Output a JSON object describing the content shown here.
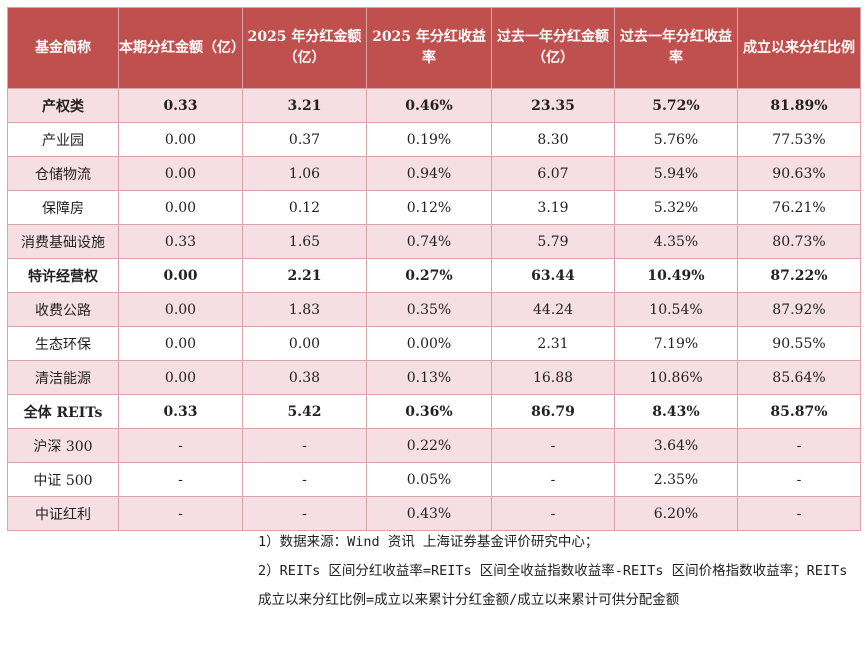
{
  "table": {
    "headers": [
      "基金简称",
      "本期分红金额（亿）",
      "2025 年分红金额（亿）",
      "2025 年分红收益率",
      "过去一年分红金额（亿）",
      "过去一年分红收益率",
      "成立以来分红比例"
    ],
    "rows": [
      {
        "name": "产权类",
        "c1": "0.33",
        "c2": "3.21",
        "c3": "0.46%",
        "c4": "23.35",
        "c5": "5.72%",
        "c6": "81.89%",
        "bold": true,
        "shade": "pink"
      },
      {
        "name": "产业园",
        "c1": "0.00",
        "c2": "0.37",
        "c3": "0.19%",
        "c4": "8.30",
        "c5": "5.76%",
        "c6": "77.53%",
        "bold": false,
        "shade": "white"
      },
      {
        "name": "仓储物流",
        "c1": "0.00",
        "c2": "1.06",
        "c3": "0.94%",
        "c4": "6.07",
        "c5": "5.94%",
        "c6": "90.63%",
        "bold": false,
        "shade": "pink"
      },
      {
        "name": "保障房",
        "c1": "0.00",
        "c2": "0.12",
        "c3": "0.12%",
        "c4": "3.19",
        "c5": "5.32%",
        "c6": "76.21%",
        "bold": false,
        "shade": "white"
      },
      {
        "name": "消费基础设施",
        "c1": "0.33",
        "c2": "1.65",
        "c3": "0.74%",
        "c4": "5.79",
        "c5": "4.35%",
        "c6": "80.73%",
        "bold": false,
        "shade": "pink"
      },
      {
        "name": "特许经营权",
        "c1": "0.00",
        "c2": "2.21",
        "c3": "0.27%",
        "c4": "63.44",
        "c5": "10.49%",
        "c6": "87.22%",
        "bold": true,
        "shade": "white"
      },
      {
        "name": "收费公路",
        "c1": "0.00",
        "c2": "1.83",
        "c3": "0.35%",
        "c4": "44.24",
        "c5": "10.54%",
        "c6": "87.92%",
        "bold": false,
        "shade": "pink"
      },
      {
        "name": "生态环保",
        "c1": "0.00",
        "c2": "0.00",
        "c3": "0.00%",
        "c4": "2.31",
        "c5": "7.19%",
        "c6": "90.55%",
        "bold": false,
        "shade": "white"
      },
      {
        "name": "清洁能源",
        "c1": "0.00",
        "c2": "0.38",
        "c3": "0.13%",
        "c4": "16.88",
        "c5": "10.86%",
        "c6": "85.64%",
        "bold": false,
        "shade": "pink"
      },
      {
        "name": "全体 REITs",
        "c1": "0.33",
        "c2": "5.42",
        "c3": "0.36%",
        "c4": "86.79",
        "c5": "8.43%",
        "c6": "85.87%",
        "bold": true,
        "shade": "white"
      },
      {
        "name": "沪深 300",
        "c1": "-",
        "c2": "-",
        "c3": "0.22%",
        "c4": "-",
        "c5": "3.64%",
        "c6": "-",
        "bold": false,
        "shade": "pink"
      },
      {
        "name": "中证 500",
        "c1": "-",
        "c2": "-",
        "c3": "0.05%",
        "c4": "-",
        "c5": "2.35%",
        "c6": "-",
        "bold": false,
        "shade": "white"
      },
      {
        "name": "中证红利",
        "c1": "-",
        "c2": "-",
        "c3": "0.43%",
        "c4": "-",
        "c5": "6.20%",
        "c6": "-",
        "bold": false,
        "shade": "pink"
      }
    ]
  },
  "notes": {
    "line1": "1）数据来源：Wind 资讯 上海证券基金评价研究中心；",
    "line2": "2）REITs 区间分红收益率=REITs 区间全收益指数收益率-REITs 区间价格指数收益率；REITs 成立以来分红比例=成立以来累计分红金额/成立以来累计可供分配金额"
  }
}
